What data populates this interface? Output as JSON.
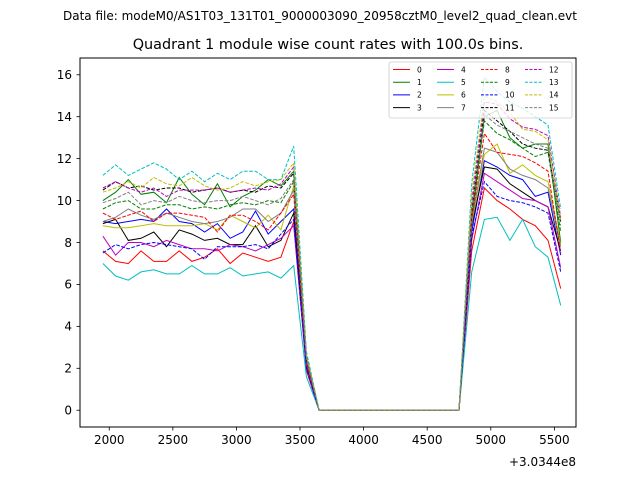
{
  "chart_data": {
    "type": "line",
    "suptitle": "Data file: modeM0/AS1T03_131T01_9000003090_20958cztM0_level2_quad_clean.evt",
    "title": "Quadrant 1 module wise count rates with 100.0s bins.",
    "xlabel": "",
    "ylabel": "",
    "x_offset_label": "+3.0344e8",
    "xlim": [
      1770,
      5670
    ],
    "ylim": [
      -0.8,
      16.8
    ],
    "xticks": [
      2000,
      2500,
      3000,
      3500,
      4000,
      4500,
      5000,
      5500
    ],
    "yticks": [
      0,
      2,
      4,
      6,
      8,
      10,
      12,
      14,
      16
    ],
    "grid": false,
    "legend_position": "top-right",
    "x": [
      1950,
      2050,
      2150,
      2250,
      2350,
      2450,
      2550,
      2650,
      2750,
      2850,
      2950,
      3050,
      3150,
      3250,
      3350,
      3450,
      3550,
      3650,
      3750,
      3850,
      3950,
      4050,
      4150,
      4250,
      4350,
      4450,
      4550,
      4650,
      4750,
      4850,
      4950,
      5050,
      5150,
      5250,
      5350,
      5450,
      5550
    ],
    "series": [
      {
        "name": "0",
        "color": "#ff0000",
        "dash": "solid",
        "values": [
          7.6,
          7.1,
          7.0,
          7.6,
          7.1,
          7.1,
          7.6,
          7.1,
          7.3,
          7.7,
          7.0,
          7.5,
          7.3,
          7.1,
          7.3,
          9.0,
          1.9,
          0,
          0,
          0,
          0,
          0,
          0,
          0,
          0,
          0,
          0,
          0,
          0,
          7.6,
          10.6,
          10.0,
          9.6,
          9.1,
          8.8,
          8.1,
          5.8
        ]
      },
      {
        "name": "1",
        "color": "#008000",
        "dash": "solid",
        "values": [
          10.0,
          10.4,
          11.0,
          10.3,
          10.4,
          9.9,
          11.1,
          10.3,
          9.8,
          10.8,
          9.7,
          10.2,
          10.5,
          11.0,
          10.7,
          11.4,
          2.6,
          0,
          0,
          0,
          0,
          0,
          0,
          0,
          0,
          0,
          0,
          0,
          0,
          9.0,
          14.0,
          14.3,
          13.0,
          12.5,
          12.7,
          12.7,
          8.0
        ]
      },
      {
        "name": "2",
        "color": "#0000ff",
        "dash": "solid",
        "values": [
          9.0,
          8.9,
          9.0,
          9.1,
          9.0,
          9.6,
          9.0,
          8.9,
          8.5,
          8.9,
          8.2,
          8.5,
          9.5,
          8.4,
          9.0,
          9.6,
          2.2,
          0,
          0,
          0,
          0,
          0,
          0,
          0,
          0,
          0,
          0,
          0,
          0,
          8.5,
          11.9,
          11.6,
          11.2,
          11.0,
          10.2,
          10.4,
          7.4
        ]
      },
      {
        "name": "3",
        "color": "#000000",
        "dash": "solid",
        "values": [
          8.9,
          9.1,
          8.1,
          8.2,
          8.5,
          7.8,
          8.6,
          8.4,
          8.1,
          8.2,
          7.9,
          7.9,
          8.8,
          7.8,
          8.1,
          9.4,
          2.1,
          0,
          0,
          0,
          0,
          0,
          0,
          0,
          0,
          0,
          0,
          0,
          0,
          8.8,
          11.6,
          11.5,
          10.8,
          10.4,
          10.0,
          9.7,
          7.6
        ]
      },
      {
        "name": "4",
        "color": "#bf00bf",
        "dash": "solid",
        "values": [
          8.3,
          7.4,
          8.0,
          8.0,
          7.8,
          8.1,
          7.9,
          7.7,
          7.7,
          7.6,
          7.9,
          7.8,
          7.6,
          7.9,
          8.2,
          8.8,
          2.0,
          0,
          0,
          0,
          0,
          0,
          0,
          0,
          0,
          0,
          0,
          0,
          0,
          8.1,
          11.3,
          10.9,
          10.5,
          10.1,
          10.0,
          9.7,
          6.8
        ]
      },
      {
        "name": "5",
        "color": "#00bfbf",
        "dash": "solid",
        "values": [
          7.0,
          6.4,
          6.2,
          6.6,
          6.7,
          6.5,
          6.5,
          6.9,
          6.5,
          6.5,
          6.8,
          6.4,
          6.5,
          6.6,
          6.3,
          6.9,
          1.6,
          0,
          0,
          0,
          0,
          0,
          0,
          0,
          0,
          0,
          0,
          0,
          0,
          6.6,
          9.1,
          9.2,
          8.1,
          9.1,
          7.8,
          7.3,
          5.0
        ]
      },
      {
        "name": "6",
        "color": "#bfbf00",
        "dash": "solid",
        "values": [
          8.8,
          8.7,
          8.7,
          8.8,
          8.9,
          8.8,
          8.8,
          8.8,
          8.9,
          8.6,
          9.3,
          9.0,
          8.7,
          9.3,
          8.6,
          10.7,
          2.4,
          0,
          0,
          0,
          0,
          0,
          0,
          0,
          0,
          0,
          0,
          0,
          0,
          8.9,
          12.2,
          12.7,
          11.3,
          11.7,
          11.2,
          10.9,
          7.9
        ]
      },
      {
        "name": "7",
        "color": "#808080",
        "dash": "solid",
        "values": [
          9.0,
          9.2,
          9.6,
          9.3,
          9.1,
          9.4,
          9.2,
          9.0,
          8.9,
          9.0,
          9.2,
          9.6,
          9.6,
          9.0,
          9.4,
          10.5,
          2.3,
          0,
          0,
          0,
          0,
          0,
          0,
          0,
          0,
          0,
          0,
          0,
          0,
          9.0,
          12.5,
          12.3,
          11.5,
          11.2,
          11.0,
          10.6,
          7.8
        ]
      },
      {
        "name": "8",
        "color": "#ff0000",
        "dash": "dashed",
        "values": [
          9.4,
          9.1,
          9.3,
          9.5,
          9.0,
          9.4,
          9.4,
          9.3,
          9.2,
          8.5,
          9.3,
          9.3,
          9.0,
          8.6,
          9.4,
          10.3,
          2.3,
          0,
          0,
          0,
          0,
          0,
          0,
          0,
          0,
          0,
          0,
          0,
          0,
          9.1,
          13.2,
          12.3,
          12.2,
          12.1,
          11.8,
          11.4,
          7.5
        ]
      },
      {
        "name": "9",
        "color": "#008000",
        "dash": "dashed",
        "values": [
          9.6,
          9.9,
          10.0,
          9.6,
          9.6,
          9.8,
          9.8,
          9.6,
          9.7,
          9.6,
          9.8,
          9.9,
          9.8,
          10.0,
          9.9,
          10.9,
          2.5,
          0,
          0,
          0,
          0,
          0,
          0,
          0,
          0,
          0,
          0,
          0,
          0,
          9.4,
          13.8,
          13.2,
          12.9,
          12.5,
          12.1,
          12.3,
          8.5
        ]
      },
      {
        "name": "10",
        "color": "#0000ff",
        "dash": "dashed",
        "values": [
          7.5,
          7.9,
          7.7,
          7.9,
          8.0,
          7.9,
          7.8,
          7.7,
          7.2,
          7.8,
          7.8,
          7.8,
          7.9,
          7.7,
          8.4,
          9.1,
          2.0,
          0,
          0,
          0,
          0,
          0,
          0,
          0,
          0,
          0,
          0,
          0,
          0,
          8.3,
          10.9,
          10.2,
          10.0,
          9.9,
          9.7,
          9.4,
          6.6
        ]
      },
      {
        "name": "11",
        "color": "#000000",
        "dash": "dashed",
        "values": [
          10.5,
          10.9,
          10.6,
          10.7,
          10.5,
          10.6,
          10.6,
          10.4,
          10.5,
          10.6,
          10.4,
          10.5,
          10.4,
          10.7,
          10.6,
          11.3,
          2.5,
          0,
          0,
          0,
          0,
          0,
          0,
          0,
          0,
          0,
          0,
          0,
          0,
          9.5,
          14.3,
          13.8,
          13.3,
          12.7,
          12.5,
          12.4,
          9.0
        ]
      },
      {
        "name": "12",
        "color": "#bf00bf",
        "dash": "dashed",
        "values": [
          10.6,
          10.9,
          10.6,
          10.4,
          10.6,
          10.2,
          10.5,
          10.5,
          10.5,
          10.6,
          10.4,
          10.5,
          10.6,
          10.5,
          10.8,
          11.6,
          2.6,
          0,
          0,
          0,
          0,
          0,
          0,
          0,
          0,
          0,
          0,
          0,
          0,
          9.9,
          14.7,
          14.6,
          13.9,
          13.5,
          13.4,
          13.1,
          9.2
        ]
      },
      {
        "name": "13",
        "color": "#00bfbf",
        "dash": "dashed",
        "values": [
          11.2,
          11.7,
          11.2,
          11.5,
          11.8,
          11.5,
          11.0,
          11.4,
          10.9,
          11.3,
          11.0,
          11.4,
          11.4,
          11.0,
          11.0,
          12.6,
          2.8,
          0,
          0,
          0,
          0,
          0,
          0,
          0,
          0,
          0,
          0,
          0,
          0,
          10.8,
          15.9,
          15.2,
          14.7,
          14.4,
          14.0,
          13.6,
          9.6
        ]
      },
      {
        "name": "14",
        "color": "#bfbf00",
        "dash": "dashed",
        "values": [
          10.4,
          10.6,
          10.9,
          10.6,
          11.1,
          10.8,
          10.7,
          11.1,
          10.7,
          10.5,
          10.6,
          10.9,
          10.7,
          10.9,
          11.0,
          11.8,
          2.6,
          0,
          0,
          0,
          0,
          0,
          0,
          0,
          0,
          0,
          0,
          0,
          0,
          10.3,
          15.0,
          14.7,
          14.2,
          13.4,
          13.3,
          12.9,
          9.1
        ]
      },
      {
        "name": "15",
        "color": "#808080",
        "dash": "dashed",
        "values": [
          9.9,
          10.1,
          10.4,
          9.8,
          10.0,
          9.9,
          10.2,
          10.0,
          9.9,
          10.0,
          10.0,
          10.2,
          10.0,
          9.8,
          10.1,
          11.0,
          2.5,
          0,
          0,
          0,
          0,
          0,
          0,
          0,
          0,
          0,
          0,
          0,
          0,
          9.6,
          14.1,
          13.6,
          13.3,
          13.0,
          12.7,
          12.5,
          8.8
        ]
      }
    ]
  }
}
